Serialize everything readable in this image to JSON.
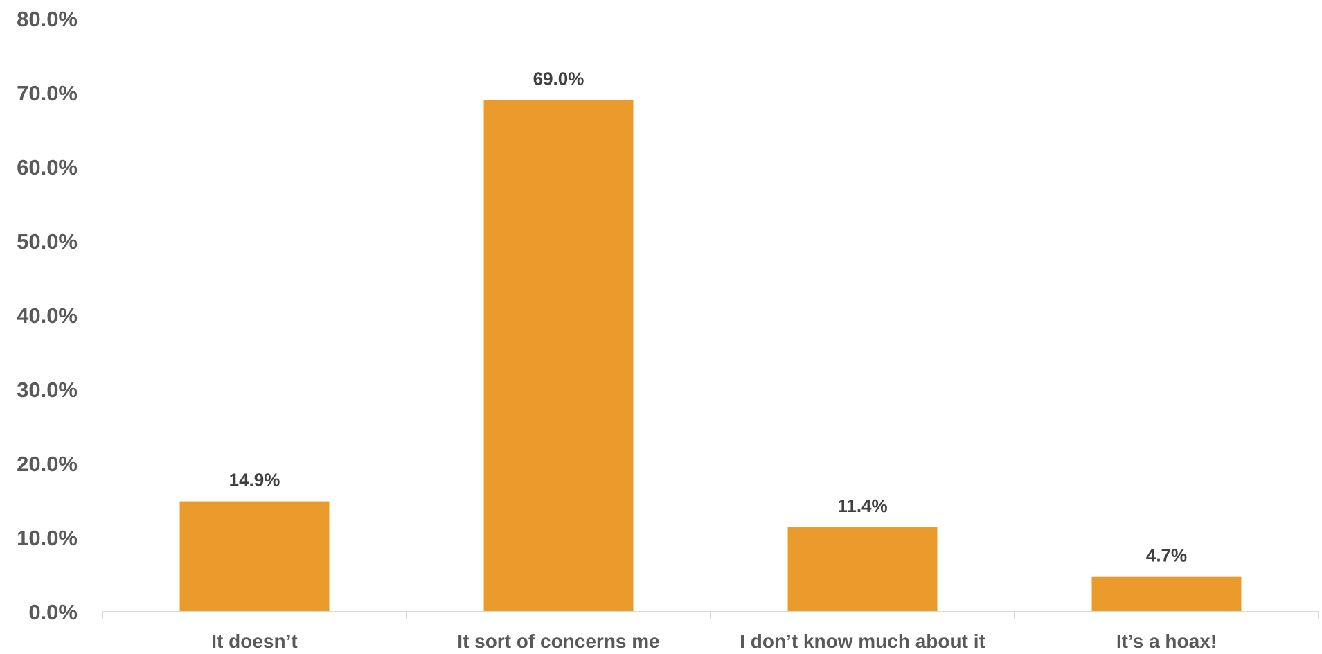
{
  "chart_data": {
    "type": "bar",
    "categories": [
      "It doesn’t",
      "It sort of concerns me",
      "I don’t know much about it",
      "It’s a hoax!"
    ],
    "values": [
      14.9,
      69.0,
      11.4,
      4.7
    ],
    "data_labels": [
      "14.9%",
      "69.0%",
      "11.4%",
      "4.7%"
    ],
    "ylim": [
      0,
      80
    ],
    "yticks": [
      0,
      10,
      20,
      30,
      40,
      50,
      60,
      70,
      80
    ],
    "ytick_labels": [
      "0.0%",
      "10.0%",
      "20.0%",
      "30.0%",
      "40.0%",
      "50.0%",
      "60.0%",
      "70.0%",
      "80.0%"
    ],
    "grid": false,
    "legend": "none",
    "bar_color": "#EB9B2B",
    "axis_color": "#D9D9D9",
    "tick_label_color": "#595959",
    "data_label_color": "#404040"
  }
}
